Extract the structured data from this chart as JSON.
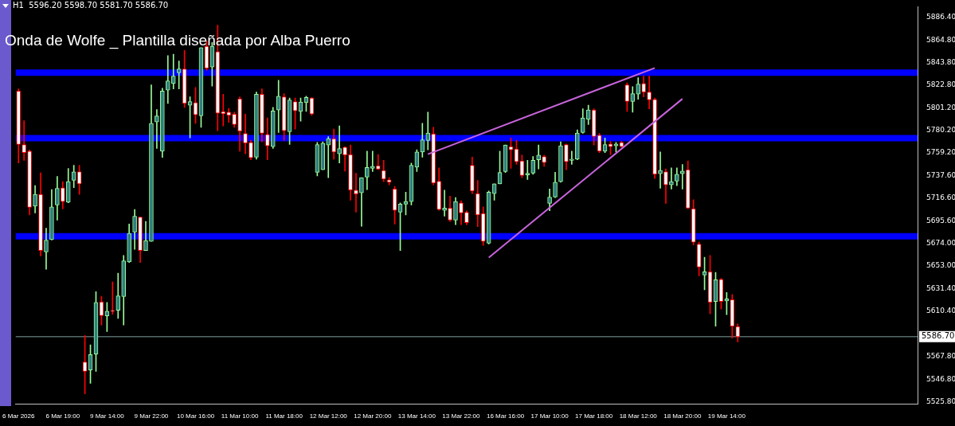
{
  "chart_data": {
    "type": "candlestick",
    "title": "H1  5596.20 5598.70 5581.70 5586.70",
    "annotations": [
      "Onda de Wolfe _ Plantilla diseñada por Alba Puerro"
    ],
    "categories": [
      "6 Mar 2026",
      null,
      null,
      null,
      null,
      null,
      null,
      null,
      "6 Mar 19:00",
      null,
      null,
      null,
      null,
      null,
      null,
      null,
      "9 Mar 14:00",
      null,
      null,
      null,
      null,
      null,
      null,
      null,
      "9 Mar 22:00",
      null,
      null,
      null,
      null,
      null,
      null,
      null,
      "10 Mar 16:00",
      null,
      null,
      null,
      null,
      null,
      null,
      null,
      "11 Mar 10:00",
      null,
      null,
      null,
      null,
      null,
      null,
      null,
      "11 Mar 18:00",
      null,
      null,
      null,
      null,
      null,
      null,
      null,
      "12 Mar 12:00",
      null,
      null,
      null,
      null,
      null,
      null,
      null,
      "12 Mar 20:00",
      null,
      null,
      null,
      null,
      null,
      null,
      null,
      "13 Mar 14:00",
      null,
      null,
      null,
      null,
      null,
      null,
      null,
      "13 Mar 22:00",
      null,
      null,
      null,
      null,
      null,
      null,
      null,
      "16 Mar 16:00",
      null,
      null,
      null,
      null,
      null,
      null,
      null,
      "17 Mar 10:00",
      null,
      null,
      null,
      null,
      null,
      null,
      null,
      "17 Mar 18:00",
      null,
      null,
      null,
      null,
      null,
      null,
      null,
      "18 Mar 12:00",
      null,
      null,
      null,
      null,
      null,
      null,
      null,
      "18 Mar 20:00",
      null,
      null,
      null,
      null,
      null,
      null,
      null,
      "19 Mar 14:00",
      null,
      null,
      null,
      null,
      null,
      null,
      null,
      null,
      null,
      null,
      null,
      null,
      null,
      null,
      null,
      null,
      null,
      null,
      null,
      null,
      null,
      null,
      null,
      null,
      null,
      null,
      null,
      null,
      null,
      null,
      null,
      null,
      null,
      null
    ],
    "ohlc": [
      [
        5817.4,
        5819.4,
        5749.7,
        5767.1
      ],
      [
        5767.1,
        5789.5,
        5752.2,
        5759.6
      ],
      [
        5760.9,
        5762,
        5701.1,
        5708.1
      ],
      [
        5709.3,
        5728.5,
        5702.9,
        5720.3
      ],
      [
        5720.3,
        5740.5,
        5662.5,
        5667.5
      ],
      [
        5666.2,
        5688.6,
        5650,
        5677.4
      ],
      [
        5677.9,
        5724.8,
        5677.4,
        5708.6
      ],
      [
        5710.3,
        5737.2,
        5696.2,
        5726
      ],
      [
        5726.5,
        5732.2,
        5706.8,
        5713.5
      ],
      [
        5713,
        5744.7,
        5712.4,
        5732.2
      ],
      [
        5733.5,
        5747.7,
        5726.7,
        5741.5
      ],
      [
        5741.7,
        5747.7,
        5720.3,
        5730.2
      ],
      [
        5562.9,
        5587.8,
        5533,
        5554.2
      ],
      [
        5555.5,
        5579.1,
        5543,
        5569.9
      ],
      [
        5570.4,
        5628.9,
        5554.2,
        5618.9
      ],
      [
        5619.4,
        5624.6,
        5597.7,
        5606.5
      ],
      [
        5606.2,
        5618.9,
        5591.5,
        5610.7
      ],
      [
        5610.7,
        5638.1,
        5607.7,
        5610.5
      ],
      [
        5611.5,
        5646.3,
        5603.9,
        5625.1
      ],
      [
        5624.4,
        5663,
        5597.7,
        5658
      ],
      [
        5657,
        5692.4,
        5656.3,
        5683.7
      ],
      [
        5684.9,
        5706.1,
        5668.7,
        5699.8
      ],
      [
        5699.1,
        5699.1,
        5656.3,
        5667.5
      ],
      [
        5667.5,
        5694.9,
        5667.5,
        5677
      ],
      [
        5676.2,
        5823.1,
        5676.2,
        5787
      ],
      [
        5788.3,
        5800,
        5763.4,
        5794
      ],
      [
        5760.9,
        5819.9,
        5755.1,
        5817.4
      ],
      [
        5818.2,
        5850.5,
        5805.7,
        5826.9
      ],
      [
        5824.4,
        5851.8,
        5819.4,
        5831.4
      ],
      [
        5834.4,
        5845.6,
        5819.4,
        5838.1
      ],
      [
        5838.1,
        5855.5,
        5802,
        5805.7
      ],
      [
        5804,
        5811.9,
        5773.3,
        5807.5
      ],
      [
        5806.5,
        5820.7,
        5787,
        5795
      ],
      [
        5794,
        5858,
        5783.3,
        5858
      ],
      [
        5859.3,
        5864.2,
        5836.8,
        5838.8
      ],
      [
        5839.8,
        5863,
        5821.9,
        5859.3
      ],
      [
        5854.3,
        5879.2,
        5780.1,
        5796.5
      ],
      [
        5798,
        5814.4,
        5784.5,
        5796
      ],
      [
        5797.5,
        5801,
        5788,
        5794.5
      ],
      [
        5795.7,
        5797.5,
        5783.3,
        5785.8
      ],
      [
        5810,
        5811.9,
        5760.9,
        5779.6
      ],
      [
        5777.6,
        5795.7,
        5758.4,
        5768.4
      ],
      [
        5769.1,
        5770.9,
        5752.7,
        5754.7
      ],
      [
        5755.2,
        5816.4,
        5753.4,
        5814.4
      ],
      [
        5814.4,
        5819.4,
        5769.6,
        5777.6
      ],
      [
        5776.6,
        5792,
        5752.7,
        5765.9
      ],
      [
        5765.1,
        5802,
        5763.4,
        5798.7
      ],
      [
        5799.5,
        5827.4,
        5778.3,
        5812.4
      ],
      [
        5811.9,
        5814.9,
        5770.9,
        5780.1
      ],
      [
        5779.1,
        5810.7,
        5767.1,
        5808.9
      ],
      [
        5807.5,
        5810.7,
        5781.6,
        5798.7
      ],
      [
        5798.2,
        5810.7,
        5789,
        5807
      ],
      [
        5806.5,
        5812.4,
        5798.2,
        5811.4
      ],
      [
        5810.7,
        5811.4,
        5794.5,
        5795.7
      ],
      [
        5741,
        5769.1,
        5737.7,
        5767.1
      ],
      [
        5743.5,
        5769.7,
        5743.5,
        5768.4
      ],
      [
        5766.6,
        5774.6,
        5736,
        5772.6
      ],
      [
        5772.6,
        5781.6,
        5753.4,
        5760.1
      ],
      [
        5758.4,
        5784.6,
        5749.7,
        5763.4
      ],
      [
        5764.6,
        5765.1,
        5742.2,
        5757.2
      ],
      [
        5757.7,
        5766.6,
        5714.8,
        5724.3
      ],
      [
        5724.3,
        5740.2,
        5703.6,
        5720.6
      ],
      [
        5721.8,
        5736,
        5690.4,
        5736
      ],
      [
        5736.5,
        5760.9,
        5724.8,
        5745.5
      ],
      [
        5744.7,
        5760.9,
        5741.7,
        5746.7
      ],
      [
        5747.2,
        5757.7,
        5743.5,
        5744
      ],
      [
        5742.7,
        5752.2,
        5732.2,
        5734.7
      ],
      [
        5734,
        5736,
        5729.3,
        5731.7
      ],
      [
        5725.3,
        5727.8,
        5692.4,
        5705.4
      ],
      [
        5703.6,
        5712.3,
        5667.5,
        5711.1
      ],
      [
        5711.1,
        5722.3,
        5701.1,
        5713.6
      ],
      [
        5713.6,
        5749.7,
        5710.3,
        5747.7
      ],
      [
        5745.9,
        5762.1,
        5741.7,
        5760.1
      ],
      [
        5760.1,
        5787,
        5755.2,
        5771.6
      ],
      [
        5770.9,
        5797.5,
        5762.1,
        5777.8
      ],
      [
        5777.1,
        5783.3,
        5729.3,
        5731
      ],
      [
        5732.7,
        5745.2,
        5705.4,
        5706.1
      ],
      [
        5705.4,
        5724.3,
        5699.9,
        5707.4
      ],
      [
        5707.4,
        5718.6,
        5694.9,
        5696.2
      ],
      [
        5696.2,
        5717.3,
        5691.9,
        5713.6
      ],
      [
        5712.3,
        5714.3,
        5691.9,
        5702.9
      ],
      [
        5703.6,
        5704.9,
        5691.9,
        5693.7
      ],
      [
        5747.7,
        5755.2,
        5721,
        5723.5
      ],
      [
        5721,
        5733.5,
        5689.9,
        5701.1
      ],
      [
        5702.4,
        5708.6,
        5672.5,
        5676.2
      ],
      [
        5674.5,
        5723.5,
        5673.7,
        5722.3
      ],
      [
        5721,
        5730.2,
        5714.8,
        5730.2
      ],
      [
        5730.2,
        5760.9,
        5730.2,
        5740.9
      ],
      [
        5741.7,
        5766.6,
        5740.9,
        5766.6
      ],
      [
        5765.1,
        5773.3,
        5744.7,
        5762.1
      ],
      [
        5762.9,
        5770.9,
        5748.4,
        5750.9
      ],
      [
        5751.7,
        5757.2,
        5736,
        5738
      ],
      [
        5738.5,
        5752.2,
        5734.2,
        5740.2
      ],
      [
        5740.2,
        5755.9,
        5739.2,
        5752.2
      ],
      [
        5752.7,
        5766.6,
        5744.2,
        5757.2
      ],
      [
        5755.9,
        5757.2,
        5746.7,
        5750.2
      ],
      [
        5711.8,
        5725.3,
        5704.9,
        5717.8
      ],
      [
        5717.8,
        5741,
        5717.3,
        5731.7
      ],
      [
        5732.2,
        5769.6,
        5731.7,
        5765.9
      ],
      [
        5767.1,
        5767.6,
        5743.5,
        5750.9
      ],
      [
        5752.2,
        5760.9,
        5748.4,
        5753.4
      ],
      [
        5753.4,
        5780.8,
        5752.7,
        5777.8
      ],
      [
        5778.3,
        5800.7,
        5777.6,
        5792
      ],
      [
        5790.8,
        5804,
        5785.8,
        5799.5
      ],
      [
        5799.5,
        5800.7,
        5766.6,
        5774.6
      ],
      [
        5775.8,
        5777.6,
        5759.6,
        5760.9
      ],
      [
        5760.9,
        5773.3,
        5759.6,
        5767.1
      ],
      [
        5767.6,
        5770.1,
        5757.7,
        5765.1
      ],
      [
        5765.9,
        5769.1,
        5760.1,
        5767.6
      ],
      [
        5769.1,
        5770.1,
        5764.6,
        5765.1
      ],
      [
        5823.1,
        5824.9,
        5798.2,
        5807.5
      ],
      [
        5807.5,
        5821.4,
        5797.5,
        5814.9
      ],
      [
        5814.4,
        5829.9,
        5809.5,
        5823.9
      ],
      [
        5824.4,
        5831.4,
        5811.9,
        5816.4
      ],
      [
        5816.4,
        5831.4,
        5800.7,
        5809
      ],
      [
        5809.5,
        5810.7,
        5735.2,
        5739.2
      ],
      [
        5739.7,
        5760.1,
        5726,
        5742.7
      ],
      [
        5741.7,
        5744.2,
        5711.8,
        5729.3
      ],
      [
        5729.3,
        5745.2,
        5725.3,
        5732.2
      ],
      [
        5732.7,
        5745.2,
        5728.5,
        5739.2
      ],
      [
        5739.7,
        5748.4,
        5725.3,
        5742.2
      ],
      [
        5743.5,
        5751.7,
        5706.9,
        5707.4
      ],
      [
        5706.9,
        5715.3,
        5673,
        5675.5
      ],
      [
        5673.7,
        5675.5,
        5643.9,
        5652.1
      ],
      [
        5644.6,
        5661.3,
        5630.7,
        5647.6
      ],
      [
        5647.6,
        5663,
        5608.2,
        5618.9
      ],
      [
        5619.7,
        5647.1,
        5596.5,
        5640.1
      ],
      [
        5640.6,
        5641.4,
        5612.7,
        5619.7
      ],
      [
        5620.2,
        5628.2,
        5607.3,
        5622.2
      ],
      [
        5621.4,
        5626.4,
        5585.3,
        5596.5
      ],
      [
        5596.2,
        5598.7,
        5581.7,
        5586.7
      ],
      null,
      null,
      null,
      null,
      null,
      null,
      null,
      null,
      null,
      null,
      null,
      null,
      null,
      null,
      null,
      null,
      null,
      null,
      null,
      null,
      null,
      null,
      null,
      null,
      null,
      null,
      null,
      null,
      null,
      null,
      null,
      null
    ],
    "series": [
      {
        "type": "line",
        "color": "#c864dc",
        "values": [
          null,
          null,
          null,
          null,
          null,
          null,
          null,
          null,
          null,
          null,
          null,
          null,
          null,
          null,
          null,
          null,
          null,
          null,
          null,
          null,
          null,
          null,
          null,
          null,
          null,
          null,
          null,
          null,
          null,
          null,
          null,
          null,
          null,
          null,
          null,
          null,
          null,
          null,
          null,
          null,
          null,
          null,
          null,
          null,
          null,
          null,
          null,
          null,
          null,
          null,
          null,
          null,
          null,
          null,
          null,
          null,
          null,
          null,
          null,
          null,
          null,
          null,
          null,
          null,
          null,
          null,
          null,
          null,
          null,
          null,
          null,
          null,
          null,
          null,
          5758,
          null,
          null,
          null,
          null,
          null,
          null,
          null,
          null,
          null,
          null,
          null,
          null,
          null,
          null,
          null,
          null,
          null,
          null,
          null,
          null,
          null,
          null,
          null,
          null,
          null,
          null,
          null,
          null,
          null,
          null,
          null,
          null,
          null,
          null,
          null,
          null,
          null,
          null,
          null,
          null,
          5839,
          null,
          null,
          null,
          null,
          null,
          null,
          null,
          null,
          null,
          null,
          null,
          null,
          null,
          null,
          null,
          null,
          null,
          null,
          null,
          null,
          null,
          null,
          null,
          null,
          null,
          null,
          null,
          null,
          null,
          null,
          null,
          null,
          null,
          null,
          null,
          null,
          null,
          null,
          null,
          null,
          null,
          null,
          null,
          null,
          null,
          null,
          null
        ]
      },
      {
        "type": "line",
        "color": "#c864dc",
        "values": [
          null,
          null,
          null,
          null,
          null,
          null,
          null,
          null,
          null,
          null,
          null,
          null,
          null,
          null,
          null,
          null,
          null,
          null,
          null,
          null,
          null,
          null,
          null,
          null,
          null,
          null,
          null,
          null,
          null,
          null,
          null,
          null,
          null,
          null,
          null,
          null,
          null,
          null,
          null,
          null,
          null,
          null,
          null,
          null,
          null,
          null,
          null,
          null,
          null,
          null,
          null,
          null,
          null,
          null,
          null,
          null,
          null,
          null,
          null,
          null,
          null,
          null,
          null,
          null,
          null,
          null,
          null,
          null,
          null,
          null,
          null,
          null,
          null,
          null,
          null,
          null,
          null,
          null,
          null,
          null,
          null,
          null,
          null,
          null,
          null,
          5661,
          null,
          null,
          null,
          null,
          null,
          null,
          null,
          null,
          null,
          null,
          null,
          null,
          null,
          null,
          null,
          null,
          null,
          null,
          null,
          null,
          null,
          null,
          null,
          null,
          null,
          null,
          null,
          null,
          null,
          null,
          null,
          null,
          null,
          null,
          5810,
          null,
          null,
          null,
          null,
          null,
          null,
          null,
          null,
          null,
          null,
          null,
          null,
          null,
          null,
          null,
          null,
          null,
          null,
          null,
          null,
          null,
          null,
          null,
          null,
          null,
          null,
          null,
          null,
          null,
          null,
          null,
          null,
          null,
          null,
          null,
          null,
          null,
          null,
          null,
          null,
          null,
          null
        ]
      }
    ],
    "ylim": [
      5523.5,
      5896.5
    ],
    "yticks": [
      {
        "value": 5886.4,
        "label": "5886.40"
      },
      {
        "value": 5864.8,
        "label": "5864.80"
      },
      {
        "value": 5843.8,
        "label": "5843.80"
      },
      {
        "value": 5822.8,
        "label": "5822.80"
      },
      {
        "value": 5801.2,
        "label": "5801.20"
      },
      {
        "value": 5780.2,
        "label": "5780.20"
      },
      {
        "value": 5759.2,
        "label": "5759.20"
      },
      {
        "value": 5737.6,
        "label": "5737.60"
      },
      {
        "value": 5716.6,
        "label": "5716.60"
      },
      {
        "value": 5695.6,
        "label": "5695.60"
      },
      {
        "value": 5674,
        "label": "5674.00"
      },
      {
        "value": 5653,
        "label": "5653.00"
      },
      {
        "value": 5631.4,
        "label": "5631.40"
      },
      {
        "value": 5610.4,
        "label": "5610.40"
      },
      {
        "value": 5567.8,
        "label": "5567.80"
      },
      {
        "value": 5546.8,
        "label": "5546.80"
      },
      {
        "value": 5525.8,
        "label": "5525.80"
      }
    ],
    "ref_lines": [
      {
        "axis": "y",
        "value": 5834.5,
        "color": "#0000ff"
      },
      {
        "axis": "y",
        "value": 5773,
        "color": "#0000ff"
      },
      {
        "axis": "y",
        "value": 5681,
        "color": "#0000ff"
      },
      {
        "axis": "y",
        "value": 5586.7,
        "label": "5586.70",
        "color": "#7fa0a0"
      }
    ],
    "grid": false,
    "legend": false,
    "marker": "none",
    "line_style": "solid"
  }
}
